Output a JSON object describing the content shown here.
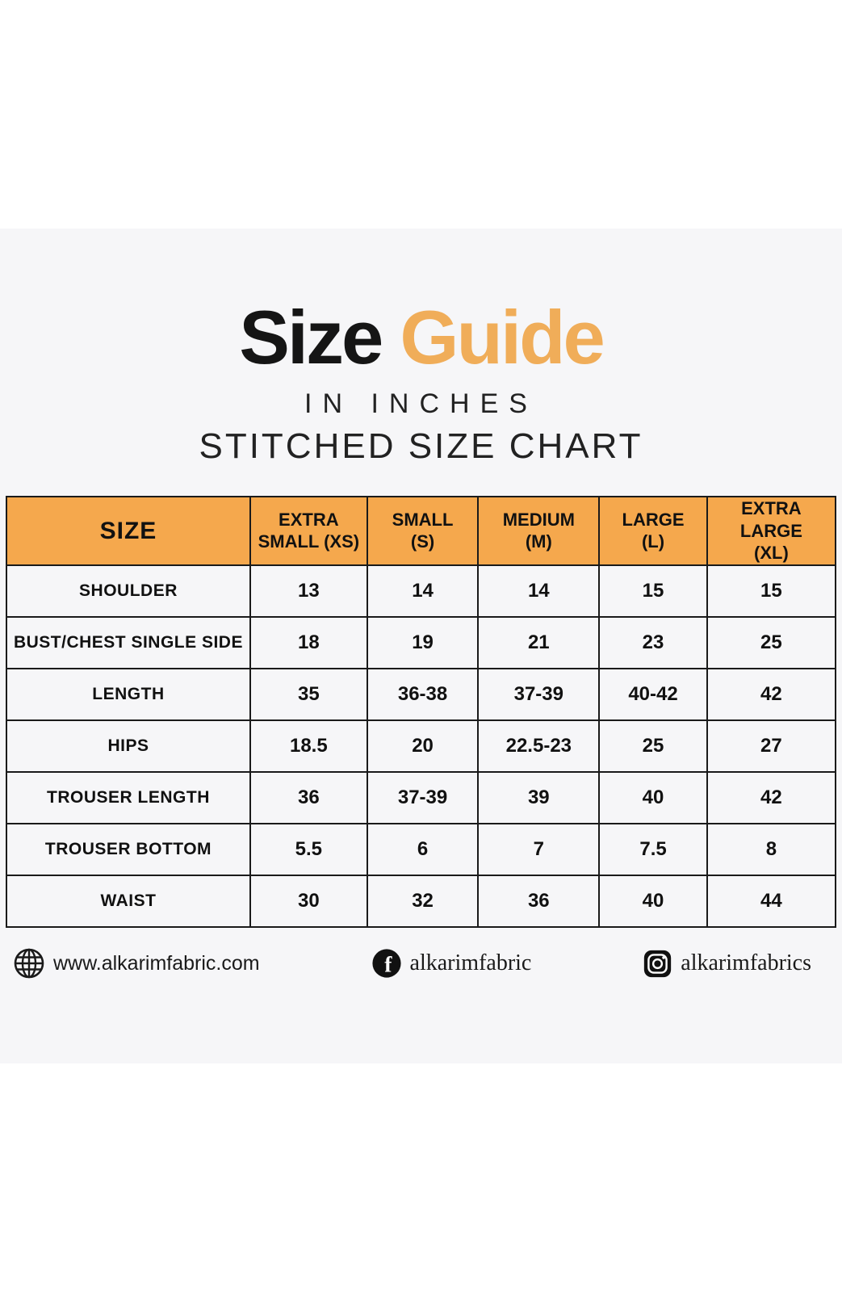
{
  "colors": {
    "page_bg": "#ffffff",
    "band_bg": "#f6f6f8",
    "accent_orange_header": "#f5a84d",
    "title_orange": "#f0ad59",
    "text_black": "#1a1a1a"
  },
  "title": {
    "word_black": "Size",
    "word_orange": "Guide",
    "subtitle": "IN INCHES",
    "heading": "STITCHED SIZE CHART"
  },
  "chart_data": {
    "type": "table",
    "title": "Size Guide",
    "units": "IN INCHES",
    "chart_name": "STITCHED SIZE CHART",
    "columns": [
      "SIZE",
      "EXTRA SMALL (XS)",
      "SMALL (S)",
      "MEDIUM (M)",
      "LARGE (L)",
      "EXTRA LARGE (XL)"
    ],
    "columns_display_lines": [
      [
        "SIZE"
      ],
      [
        "EXTRA",
        "SMALL (XS)"
      ],
      [
        "SMALL",
        "(S)"
      ],
      [
        "MEDIUM",
        "(M)"
      ],
      [
        "LARGE",
        "(L)"
      ],
      [
        "EXTRA LARGE",
        "(XL)"
      ]
    ],
    "rows": [
      {
        "label": "SHOULDER",
        "values": [
          "13",
          "14",
          "14",
          "15",
          "15"
        ]
      },
      {
        "label": "BUST/CHEST SINGLE SIDE",
        "values": [
          "18",
          "19",
          "21",
          "23",
          "25"
        ]
      },
      {
        "label": "LENGTH",
        "values": [
          "35",
          "36-38",
          "37-39",
          "40-42",
          "42"
        ]
      },
      {
        "label": "HIPS",
        "values": [
          "18.5",
          "20",
          "22.5-23",
          "25",
          "27"
        ]
      },
      {
        "label": "TROUSER LENGTH",
        "values": [
          "36",
          "37-39",
          "39",
          "40",
          "42"
        ]
      },
      {
        "label": "TROUSER BOTTOM",
        "values": [
          "5.5",
          "6",
          "7",
          "7.5",
          "8"
        ]
      },
      {
        "label": "WAIST",
        "values": [
          "30",
          "32",
          "36",
          "40",
          "44"
        ]
      }
    ]
  },
  "footer": {
    "website": {
      "icon": "globe-icon",
      "text": "www.alkarimfabric.com"
    },
    "facebook": {
      "icon": "facebook-icon",
      "text": "alkarimfabric"
    },
    "instagram": {
      "icon": "instagram-icon",
      "text": "alkarimfabrics"
    }
  }
}
